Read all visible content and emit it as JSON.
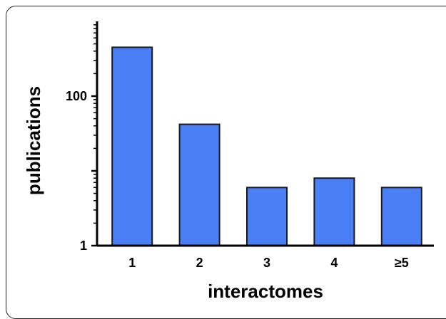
{
  "chart_data": {
    "type": "bar",
    "categories": [
      "1",
      "2",
      "3",
      "4",
      "≥5"
    ],
    "values": [
      450,
      42,
      6,
      8,
      6
    ],
    "xlabel": "interactomes",
    "ylabel": "publications",
    "yscale": "log",
    "ylim": [
      1,
      1000
    ],
    "yticks": [
      1,
      100
    ],
    "ytick_labels": [
      "1",
      "100"
    ],
    "grid": false,
    "legend": "none",
    "colors": {
      "bar_fill": "#4a7ff5",
      "bar_stroke": "#1a1a1a",
      "axis": "#000000"
    }
  }
}
